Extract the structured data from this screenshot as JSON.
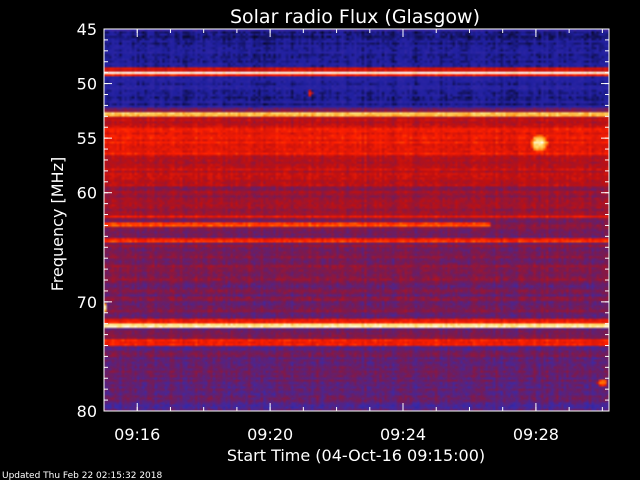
{
  "chart_data": {
    "type": "heatmap",
    "title": "Solar radio Flux (Glasgow)",
    "xlabel": "Start Time (04-Oct-16 09:15:00)",
    "ylabel": "Frequency [MHz]",
    "x_unit": "minutes after 09:15:00",
    "xlim": [
      0.0,
      15.2
    ],
    "ylim": [
      45,
      80
    ],
    "y_inverted": true,
    "x_ticks": [
      {
        "value": 1.0,
        "label": "09:16"
      },
      {
        "value": 5.0,
        "label": "09:20"
      },
      {
        "value": 9.0,
        "label": "09:24"
      },
      {
        "value": 13.0,
        "label": "09:28"
      }
    ],
    "y_ticks": [
      {
        "value": 45,
        "label": "45"
      },
      {
        "value": 50,
        "label": "50"
      },
      {
        "value": 55,
        "label": "55"
      },
      {
        "value": 60,
        "label": "60"
      },
      {
        "value": 70,
        "label": "70"
      },
      {
        "value": 80,
        "label": "80"
      }
    ],
    "colormap": [
      "#000000",
      "#2020a0",
      "#3a2aa8",
      "#7a1a50",
      "#c01010",
      "#ff2000",
      "#ff8000",
      "#ffe070",
      "#ffffff"
    ],
    "bands": [
      {
        "f0": 45.0,
        "f1": 45.3,
        "level": 0.22
      },
      {
        "f0": 45.3,
        "f1": 48.6,
        "level": 0.12
      },
      {
        "f0": 48.6,
        "f1": 48.85,
        "level": 0.55
      },
      {
        "f0": 48.85,
        "f1": 49.15,
        "level": 0.97
      },
      {
        "f0": 49.15,
        "f1": 49.4,
        "level": 0.6
      },
      {
        "f0": 49.4,
        "f1": 52.3,
        "level": 0.13
      },
      {
        "f0": 52.3,
        "f1": 52.6,
        "level": 0.35
      },
      {
        "f0": 52.6,
        "f1": 52.95,
        "level": 0.85
      },
      {
        "f0": 52.95,
        "f1": 54.0,
        "level": 0.5
      },
      {
        "f0": 54.0,
        "f1": 56.5,
        "level": 0.58
      },
      {
        "f0": 56.5,
        "f1": 59.5,
        "level": 0.5
      },
      {
        "f0": 59.5,
        "f1": 62.0,
        "level": 0.42
      },
      {
        "f0": 62.0,
        "f1": 62.3,
        "level": 0.55
      },
      {
        "f0": 62.3,
        "f1": 64.2,
        "level": 0.38
      },
      {
        "f0": 64.2,
        "f1": 64.6,
        "level": 0.62
      },
      {
        "f0": 64.6,
        "f1": 68.5,
        "level": 0.38
      },
      {
        "f0": 68.5,
        "f1": 71.5,
        "level": 0.36
      },
      {
        "f0": 71.5,
        "f1": 71.9,
        "level": 0.6
      },
      {
        "f0": 71.9,
        "f1": 72.3,
        "level": 0.9
      },
      {
        "f0": 72.3,
        "f1": 73.5,
        "level": 0.36
      },
      {
        "f0": 73.5,
        "f1": 74.0,
        "level": 0.58
      },
      {
        "f0": 74.0,
        "f1": 79.2,
        "level": 0.34
      },
      {
        "f0": 79.2,
        "f1": 80.0,
        "level": 0.3
      }
    ],
    "partial_bands": [
      {
        "f0": 62.8,
        "f1": 63.1,
        "t0": 0.0,
        "t1": 11.6,
        "level": 0.65
      }
    ],
    "features": [
      {
        "f": 55.5,
        "t": 13.1,
        "df": 0.8,
        "dt": 0.25,
        "level": 0.95
      },
      {
        "f": 50.9,
        "t": 6.2,
        "df": 0.3,
        "dt": 0.08,
        "level": 0.6
      },
      {
        "f": 70.5,
        "t": 0.0,
        "df": 0.4,
        "dt": 0.1,
        "level": 0.98
      },
      {
        "f": 77.4,
        "t": 15.0,
        "df": 0.3,
        "dt": 0.15,
        "level": 0.8
      }
    ]
  },
  "footer": "Updated Thu Feb 22 02:15:32 2018"
}
